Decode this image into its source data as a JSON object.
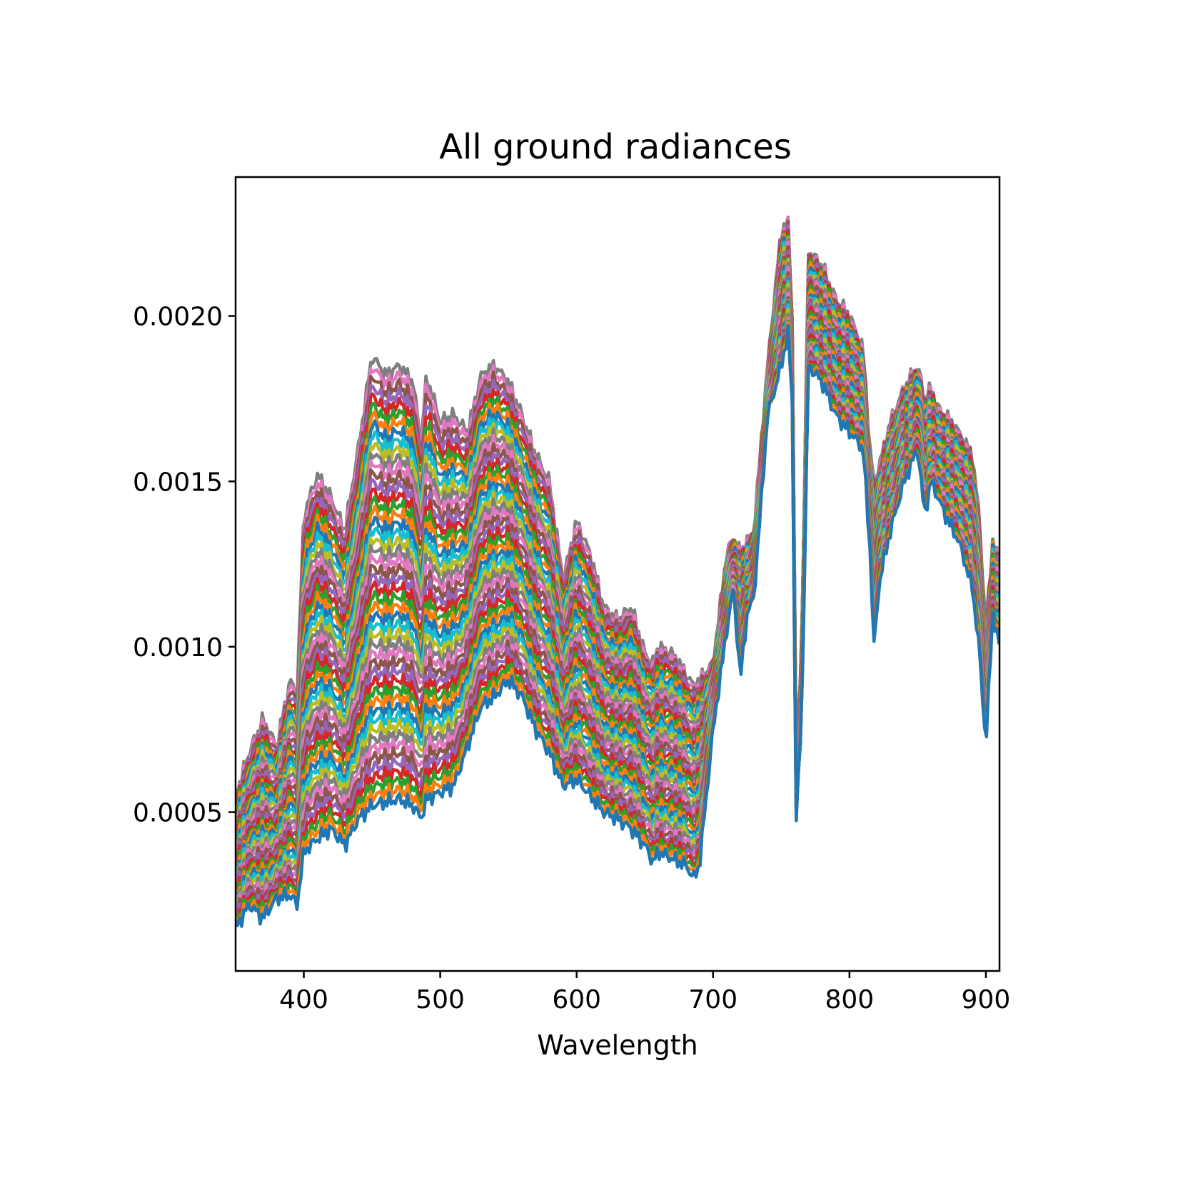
{
  "chart_data": {
    "type": "line",
    "title": "All ground radiances",
    "xlabel": "Wavelength",
    "ylabel": "",
    "xlim": [
      350,
      910
    ],
    "ylim": [
      2e-05,
      0.00242
    ],
    "xticks": [
      {
        "value": 400,
        "label": "400"
      },
      {
        "value": 500,
        "label": "500"
      },
      {
        "value": 600,
        "label": "600"
      },
      {
        "value": 700,
        "label": "700"
      },
      {
        "value": 800,
        "label": "800"
      },
      {
        "value": 900,
        "label": "900"
      }
    ],
    "yticks": [
      {
        "value": 0.0005,
        "label": "0.0005"
      },
      {
        "value": 0.001,
        "label": "0.0010"
      },
      {
        "value": 0.0015,
        "label": "0.0015"
      },
      {
        "value": 0.002,
        "label": "0.0020"
      }
    ],
    "grid": false,
    "legend": "none",
    "palette": [
      "#1f77b4",
      "#ff7f0e",
      "#2ca02c",
      "#d62728",
      "#9467bd",
      "#8c564b",
      "#e377c2",
      "#7f7f7f",
      "#bcbd22",
      "#17becf"
    ],
    "series_count": 48,
    "reference_spectra": {
      "x": [
        350,
        360,
        370,
        380,
        390,
        395,
        400,
        410,
        420,
        430,
        440,
        450,
        460,
        470,
        480,
        486,
        490,
        500,
        510,
        520,
        530,
        540,
        550,
        560,
        570,
        580,
        590,
        600,
        610,
        620,
        630,
        640,
        650,
        656,
        660,
        670,
        680,
        686,
        690,
        700,
        710,
        715,
        720,
        725,
        730,
        740,
        750,
        755,
        758,
        761,
        765,
        770,
        780,
        790,
        800,
        810,
        815,
        818,
        822,
        830,
        840,
        850,
        855,
        860,
        865,
        870,
        880,
        890,
        895,
        900,
        905,
        910
      ],
      "high": [
        0.00055,
        0.00068,
        0.00078,
        0.0007,
        0.0009,
        0.00085,
        0.0014,
        0.00152,
        0.00145,
        0.00135,
        0.0016,
        0.00188,
        0.00182,
        0.00185,
        0.0018,
        0.00162,
        0.00182,
        0.00168,
        0.0017,
        0.00165,
        0.00182,
        0.00185,
        0.0018,
        0.0017,
        0.00158,
        0.0015,
        0.0012,
        0.00138,
        0.00128,
        0.00112,
        0.00108,
        0.00112,
        0.00098,
        0.00095,
        0.001,
        0.00098,
        0.00092,
        0.00088,
        0.0009,
        0.00095,
        0.00128,
        0.00133,
        0.00128,
        0.00132,
        0.00135,
        0.00185,
        0.00226,
        0.00228,
        0.002,
        0.00065,
        0.001,
        0.0022,
        0.00215,
        0.00205,
        0.002,
        0.0019,
        0.0016,
        0.0015,
        0.00155,
        0.00168,
        0.00178,
        0.00185,
        0.00175,
        0.00178,
        0.00172,
        0.0017,
        0.00165,
        0.00158,
        0.0014,
        0.00105,
        0.00132,
        0.00125
      ],
      "low": [
        0.00015,
        0.00022,
        0.00018,
        0.00024,
        0.00025,
        0.00022,
        0.00038,
        0.00042,
        0.00045,
        0.0004,
        0.00048,
        0.00052,
        0.00053,
        0.00054,
        0.00052,
        0.00048,
        0.00054,
        0.00056,
        0.00058,
        0.0007,
        0.00082,
        0.00085,
        0.0009,
        0.00085,
        0.00075,
        0.00068,
        0.00058,
        0.0006,
        0.00055,
        0.0005,
        0.00048,
        0.00045,
        0.0004,
        0.00035,
        0.00038,
        0.00036,
        0.00034,
        0.0003,
        0.00034,
        0.00075,
        0.00105,
        0.00118,
        0.0009,
        0.0011,
        0.00115,
        0.0017,
        0.00185,
        0.00195,
        0.00175,
        0.00048,
        0.0008,
        0.00185,
        0.0018,
        0.0017,
        0.00165,
        0.0016,
        0.0013,
        0.001,
        0.0012,
        0.00135,
        0.0015,
        0.0016,
        0.0014,
        0.0015,
        0.00145,
        0.0014,
        0.00132,
        0.00118,
        0.001,
        0.0007,
        0.0011,
        0.001
      ]
    }
  }
}
